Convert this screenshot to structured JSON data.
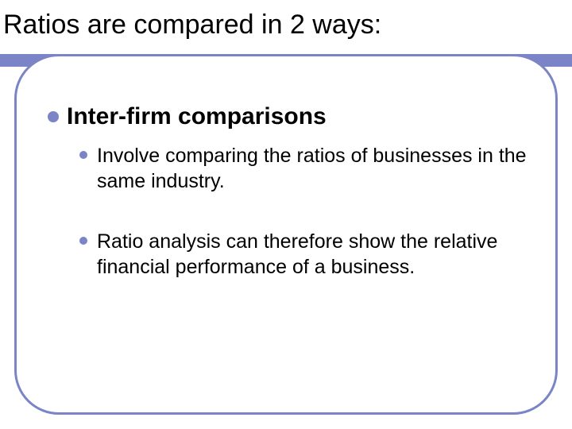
{
  "slide": {
    "title": "Ratios are compared in 2 ways:",
    "subheading": "Inter-firm comparisons",
    "body_items": [
      "Involve comparing the ratios of businesses in the same industry.",
      "Ratio analysis can therefore show the relative financial performance of a business."
    ]
  },
  "style": {
    "accent_color": "#7b84c6",
    "background_color": "#ffffff",
    "text_color": "#000000",
    "title_fontsize": 34,
    "subheading_fontsize": 30,
    "body_fontsize": 25,
    "frame_border_width": 3,
    "frame_border_radius": 56,
    "bullet_large_size": 14,
    "bullet_small_size": 10
  }
}
